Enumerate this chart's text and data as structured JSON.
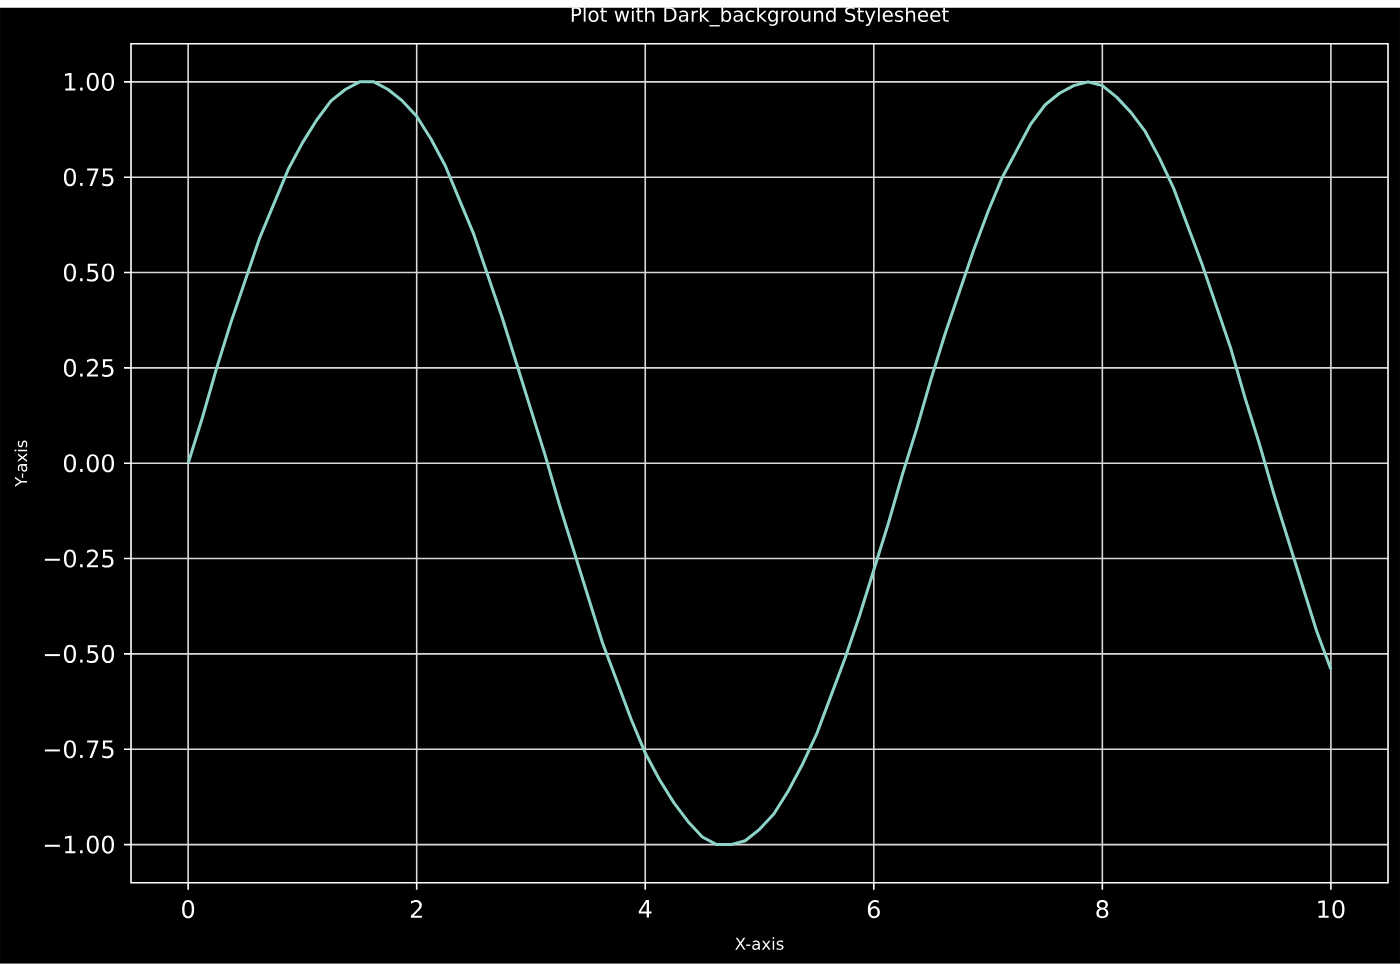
{
  "chart_data": {
    "type": "line",
    "title": "Plot with Dark_background Stylesheet",
    "xlabel": "X-axis",
    "ylabel": "Y-axis",
    "x": [
      0,
      0.125,
      0.25,
      0.375,
      0.5,
      0.625,
      0.75,
      0.875,
      1,
      1.125,
      1.25,
      1.375,
      1.5,
      1.625,
      1.75,
      1.875,
      2,
      2.125,
      2.25,
      2.375,
      2.5,
      2.625,
      2.75,
      2.875,
      3,
      3.125,
      3.25,
      3.375,
      3.5,
      3.625,
      3.75,
      3.875,
      4,
      4.125,
      4.25,
      4.375,
      4.5,
      4.625,
      4.75,
      4.875,
      5,
      5.125,
      5.25,
      5.375,
      5.5,
      5.625,
      5.75,
      5.875,
      6,
      6.125,
      6.25,
      6.375,
      6.5,
      6.625,
      6.75,
      6.875,
      7,
      7.125,
      7.25,
      7.375,
      7.5,
      7.625,
      7.75,
      7.875,
      8,
      8.125,
      8.25,
      8.375,
      8.5,
      8.625,
      8.75,
      8.875,
      9,
      9.125,
      9.25,
      9.375,
      9.5,
      9.625,
      9.75,
      9.875,
      10
    ],
    "series": [
      {
        "color": "#8dd3c7",
        "values": [
          0,
          0.12,
          0.25,
          0.37,
          0.48,
          0.59,
          0.68,
          0.77,
          0.84,
          0.9,
          0.95,
          0.98,
          1.0,
          1.0,
          0.98,
          0.95,
          0.91,
          0.85,
          0.78,
          0.69,
          0.6,
          0.49,
          0.38,
          0.26,
          0.14,
          0.02,
          -0.11,
          -0.23,
          -0.35,
          -0.47,
          -0.57,
          -0.67,
          -0.76,
          -0.83,
          -0.89,
          -0.94,
          -0.98,
          -1.0,
          -1.0,
          -0.99,
          -0.96,
          -0.92,
          -0.86,
          -0.79,
          -0.71,
          -0.61,
          -0.51,
          -0.4,
          -0.28,
          -0.16,
          -0.03,
          0.09,
          0.22,
          0.34,
          0.45,
          0.56,
          0.66,
          0.75,
          0.82,
          0.89,
          0.94,
          0.97,
          0.99,
          1.0,
          0.99,
          0.96,
          0.92,
          0.87,
          0.8,
          0.72,
          0.62,
          0.52,
          0.41,
          0.3,
          0.17,
          0.05,
          -0.08,
          -0.2,
          -0.32,
          -0.44,
          -0.54
        ]
      }
    ],
    "xlim": [
      -0.5,
      10.5
    ],
    "ylim": [
      -1.1,
      1.1
    ],
    "xticks": [
      0,
      2,
      4,
      6,
      8,
      10
    ],
    "yticks": [
      {
        "value": -1,
        "label": "−1.00"
      },
      {
        "value": -0.75,
        "label": "−0.75"
      },
      {
        "value": -0.5,
        "label": "−0.50"
      },
      {
        "value": -0.25,
        "label": "−0.25"
      },
      {
        "value": 0,
        "label": "0.00"
      },
      {
        "value": 0.25,
        "label": "0.25"
      },
      {
        "value": 0.5,
        "label": "0.50"
      },
      {
        "value": 0.75,
        "label": "0.75"
      },
      {
        "value": 1,
        "label": "1.00"
      }
    ],
    "grid": true
  }
}
